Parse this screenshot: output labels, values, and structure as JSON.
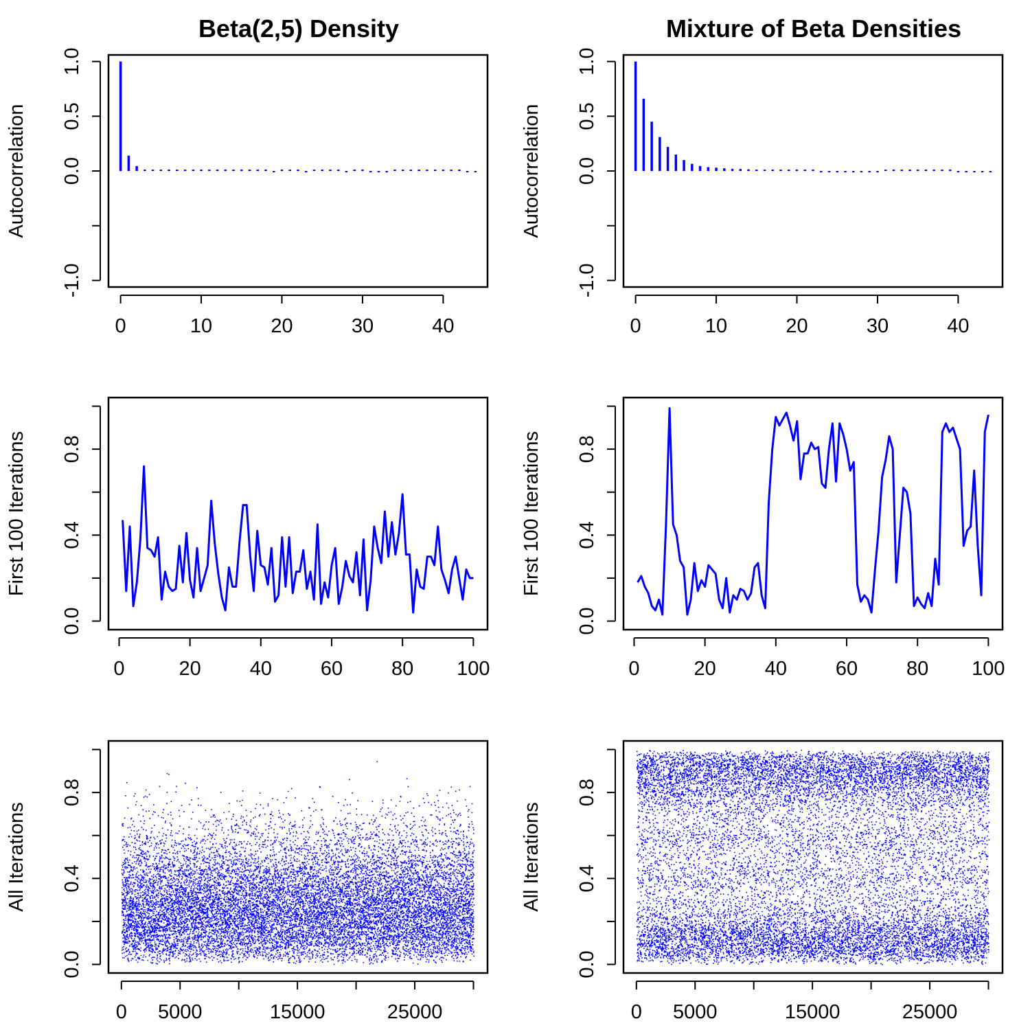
{
  "figure": {
    "columns": [
      {
        "title": "Beta(2,5) Density"
      },
      {
        "title": "Mixture of Beta Densities"
      }
    ],
    "row_ylabels": [
      "Autocorrelation",
      "First 100 Iterations",
      "All Iterations"
    ],
    "series_color": "#0000FF"
  },
  "chart_data": [
    {
      "type": "bar",
      "variant": "acf",
      "panel": "Beta(2,5) Density / Autocorrelation",
      "title": "Beta(2,5) Density",
      "ylabel": "Autocorrelation",
      "xlabel": "",
      "xlim": [
        -1.5,
        45.5
      ],
      "ylim": [
        -1.06,
        1.06
      ],
      "xticks": [
        0,
        10,
        20,
        30,
        40
      ],
      "yticks": [
        -1.0,
        0.0,
        0.5,
        1.0
      ],
      "ytick_labels": [
        "-1.0",
        "",
        "0.0",
        "0.5",
        "1.0"
      ],
      "ytick_marks": [
        -1.0,
        -0.5,
        0.0,
        0.5,
        1.0
      ],
      "lags": [
        0,
        1,
        2,
        3,
        4,
        5,
        6,
        7,
        8,
        9,
        10,
        11,
        12,
        13,
        14,
        15,
        16,
        17,
        18,
        19,
        20,
        21,
        22,
        23,
        24,
        25,
        26,
        27,
        28,
        29,
        30,
        31,
        32,
        33,
        34,
        35,
        36,
        37,
        38,
        39,
        40,
        41,
        42,
        43,
        44
      ],
      "values": [
        1.0,
        0.14,
        0.045,
        0.012,
        0.004,
        0.002,
        0.001,
        0.003,
        0.002,
        0.0,
        0.001,
        0.002,
        0.0,
        0.001,
        0.004,
        0.002,
        0.005,
        0.001,
        0.003,
        -0.002,
        0.0,
        0.001,
        0.003,
        -0.003,
        0.001,
        0.003,
        0.004,
        0.002,
        -0.003,
        0.002,
        0.002,
        -0.008,
        -0.004,
        -0.002,
        0.004,
        0.003,
        0.005,
        0.008,
        0.004,
        0.006,
        0.003,
        0.002,
        0.001,
        -0.003,
        -0.004
      ]
    },
    {
      "type": "bar",
      "variant": "acf",
      "panel": "Mixture of Beta Densities / Autocorrelation",
      "title": "Mixture of Beta Densities",
      "ylabel": "Autocorrelation",
      "xlabel": "",
      "xlim": [
        -1.5,
        45.5
      ],
      "ylim": [
        -1.06,
        1.06
      ],
      "xticks": [
        0,
        10,
        20,
        30,
        40
      ],
      "yticks": [
        -1.0,
        0.0,
        0.5,
        1.0
      ],
      "ytick_labels": [
        "-1.0",
        "",
        "0.0",
        "0.5",
        "1.0"
      ],
      "ytick_marks": [
        -1.0,
        -0.5,
        0.0,
        0.5,
        1.0
      ],
      "lags": [
        0,
        1,
        2,
        3,
        4,
        5,
        6,
        7,
        8,
        9,
        10,
        11,
        12,
        13,
        14,
        15,
        16,
        17,
        18,
        19,
        20,
        21,
        22,
        23,
        24,
        25,
        26,
        27,
        28,
        29,
        30,
        31,
        32,
        33,
        34,
        35,
        36,
        37,
        38,
        39,
        40,
        41,
        42,
        43,
        44
      ],
      "values": [
        1.0,
        0.66,
        0.45,
        0.31,
        0.22,
        0.15,
        0.1,
        0.065,
        0.045,
        0.035,
        0.03,
        0.025,
        0.02,
        0.018,
        0.015,
        0.012,
        0.01,
        0.008,
        0.005,
        0.003,
        0.002,
        0.001,
        0.0,
        -0.002,
        -0.004,
        -0.003,
        -0.005,
        -0.008,
        -0.006,
        -0.004,
        -0.002,
        0.0,
        0.002,
        0.005,
        0.008,
        0.01,
        0.008,
        0.006,
        0.003,
        0.001,
        -0.002,
        -0.003,
        -0.004,
        -0.002,
        -0.001
      ]
    },
    {
      "type": "line",
      "panel": "Beta(2,5) Density / First 100 Iterations",
      "ylabel": "First 100 Iterations",
      "xlabel": "",
      "xlim": [
        -3,
        104
      ],
      "ylim": [
        -0.04,
        1.04
      ],
      "xticks": [
        0,
        20,
        40,
        60,
        80,
        100
      ],
      "yticks": [
        0.0,
        0.4,
        0.8
      ],
      "ytick_marks": [
        0.0,
        0.2,
        0.4,
        0.6,
        0.8,
        1.0
      ],
      "x": [
        1,
        2,
        3,
        4,
        5,
        6,
        7,
        8,
        9,
        10,
        11,
        12,
        13,
        14,
        15,
        16,
        17,
        18,
        19,
        20,
        21,
        22,
        23,
        24,
        25,
        26,
        27,
        28,
        29,
        30,
        31,
        32,
        33,
        34,
        35,
        36,
        37,
        38,
        39,
        40,
        41,
        42,
        43,
        44,
        45,
        46,
        47,
        48,
        49,
        50,
        51,
        52,
        53,
        54,
        55,
        56,
        57,
        58,
        59,
        60,
        61,
        62,
        63,
        64,
        65,
        66,
        67,
        68,
        69,
        70,
        71,
        72,
        73,
        74,
        75,
        76,
        77,
        78,
        79,
        80,
        81,
        82,
        83,
        84,
        85,
        86,
        87,
        88,
        89,
        90,
        91,
        92,
        93,
        94,
        95,
        96,
        97,
        98,
        99,
        100
      ],
      "y": [
        0.47,
        0.14,
        0.44,
        0.07,
        0.18,
        0.38,
        0.72,
        0.34,
        0.33,
        0.3,
        0.39,
        0.1,
        0.23,
        0.16,
        0.14,
        0.15,
        0.35,
        0.18,
        0.41,
        0.19,
        0.11,
        0.34,
        0.14,
        0.2,
        0.26,
        0.56,
        0.36,
        0.22,
        0.11,
        0.05,
        0.25,
        0.16,
        0.16,
        0.37,
        0.54,
        0.54,
        0.3,
        0.14,
        0.42,
        0.26,
        0.25,
        0.17,
        0.34,
        0.09,
        0.12,
        0.39,
        0.16,
        0.39,
        0.13,
        0.23,
        0.23,
        0.33,
        0.15,
        0.23,
        0.1,
        0.45,
        0.08,
        0.18,
        0.11,
        0.26,
        0.34,
        0.08,
        0.16,
        0.28,
        0.21,
        0.18,
        0.32,
        0.12,
        0.38,
        0.05,
        0.19,
        0.44,
        0.34,
        0.27,
        0.51,
        0.3,
        0.46,
        0.31,
        0.41,
        0.59,
        0.31,
        0.31,
        0.04,
        0.24,
        0.16,
        0.15,
        0.3,
        0.3,
        0.26,
        0.44,
        0.24,
        0.19,
        0.13,
        0.24,
        0.3,
        0.2,
        0.1,
        0.24,
        0.2,
        0.2
      ]
    },
    {
      "type": "line",
      "panel": "Mixture of Beta Densities / First 100 Iterations",
      "ylabel": "First 100 Iterations",
      "xlabel": "",
      "xlim": [
        -3,
        104
      ],
      "ylim": [
        -0.04,
        1.04
      ],
      "xticks": [
        0,
        20,
        40,
        60,
        80,
        100
      ],
      "yticks": [
        0.0,
        0.4,
        0.8
      ],
      "ytick_marks": [
        0.0,
        0.2,
        0.4,
        0.6,
        0.8,
        1.0
      ],
      "x": [
        1,
        2,
        3,
        4,
        5,
        6,
        7,
        8,
        9,
        10,
        11,
        12,
        13,
        14,
        15,
        16,
        17,
        18,
        19,
        20,
        21,
        22,
        23,
        24,
        25,
        26,
        27,
        28,
        29,
        30,
        31,
        32,
        33,
        34,
        35,
        36,
        37,
        38,
        39,
        40,
        41,
        42,
        43,
        44,
        45,
        46,
        47,
        48,
        49,
        50,
        51,
        52,
        53,
        54,
        55,
        56,
        57,
        58,
        59,
        60,
        61,
        62,
        63,
        64,
        65,
        66,
        67,
        68,
        69,
        70,
        71,
        72,
        73,
        74,
        75,
        76,
        77,
        78,
        79,
        80,
        81,
        82,
        83,
        84,
        85,
        86,
        87,
        88,
        89,
        90,
        91,
        92,
        93,
        94,
        95,
        96,
        97,
        98,
        99,
        100
      ],
      "y": [
        0.18,
        0.21,
        0.16,
        0.13,
        0.07,
        0.05,
        0.1,
        0.03,
        0.45,
        0.99,
        0.45,
        0.4,
        0.28,
        0.25,
        0.03,
        0.1,
        0.27,
        0.14,
        0.19,
        0.16,
        0.26,
        0.24,
        0.22,
        0.1,
        0.06,
        0.2,
        0.04,
        0.12,
        0.1,
        0.15,
        0.14,
        0.1,
        0.13,
        0.25,
        0.27,
        0.12,
        0.06,
        0.55,
        0.8,
        0.95,
        0.91,
        0.94,
        0.97,
        0.91,
        0.84,
        0.93,
        0.66,
        0.78,
        0.78,
        0.83,
        0.8,
        0.81,
        0.64,
        0.62,
        0.8,
        0.92,
        0.65,
        0.92,
        0.87,
        0.8,
        0.7,
        0.74,
        0.17,
        0.09,
        0.12,
        0.1,
        0.04,
        0.24,
        0.42,
        0.67,
        0.75,
        0.86,
        0.8,
        0.18,
        0.4,
        0.62,
        0.6,
        0.5,
        0.07,
        0.11,
        0.08,
        0.06,
        0.13,
        0.07,
        0.29,
        0.17,
        0.88,
        0.92,
        0.88,
        0.9,
        0.85,
        0.8,
        0.35,
        0.42,
        0.44,
        0.7,
        0.35,
        0.12,
        0.88,
        0.96
      ]
    },
    {
      "type": "scatter",
      "panel": "Beta(2,5) Density / All Iterations",
      "ylabel": "All Iterations",
      "xlabel": "",
      "description_of_points": "about 30000 MCMC draws from Beta(2,5), dense band between 0.05 and 0.55",
      "n_points_drawn": 15000,
      "distribution": {
        "kind": "beta",
        "a": 2,
        "b": 5,
        "autocorr": 0.14
      },
      "x_range": [
        1,
        30000
      ],
      "xlim": [
        -1100,
        31200
      ],
      "ylim": [
        -0.04,
        1.04
      ],
      "xticks": [
        0,
        5000,
        15000,
        25000
      ],
      "xtick_marks": [
        0,
        5000,
        10000,
        15000,
        20000,
        25000,
        30000
      ],
      "yticks": [
        0.0,
        0.4,
        0.8
      ],
      "ytick_marks": [
        0.0,
        0.2,
        0.4,
        0.6,
        0.8,
        1.0
      ]
    },
    {
      "type": "scatter",
      "panel": "Mixture of Beta Densities / All Iterations",
      "ylabel": "All Iterations",
      "xlabel": "",
      "description_of_points": "about 30000 MCMC draws from a bimodal beta mixture, dense bands near 0.1 and near 0.88",
      "n_points_drawn": 15000,
      "distribution": {
        "kind": "beta-mixture",
        "components": [
          {
            "a": 2,
            "b": 12,
            "weight": 0.5
          },
          {
            "a": 12,
            "b": 2,
            "weight": 0.5
          }
        ],
        "autocorr": 0.66
      },
      "x_range": [
        1,
        30000
      ],
      "xlim": [
        -1100,
        31200
      ],
      "ylim": [
        -0.04,
        1.04
      ],
      "xticks": [
        0,
        5000,
        15000,
        25000
      ],
      "xtick_marks": [
        0,
        5000,
        10000,
        15000,
        20000,
        25000,
        30000
      ],
      "yticks": [
        0.0,
        0.4,
        0.8
      ],
      "ytick_marks": [
        0.0,
        0.2,
        0.4,
        0.6,
        0.8,
        1.0
      ]
    }
  ]
}
